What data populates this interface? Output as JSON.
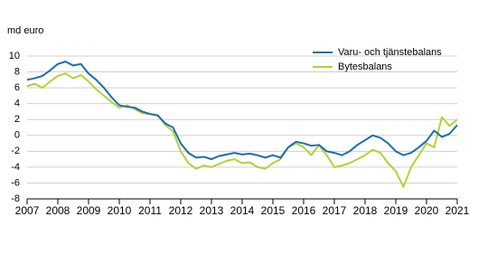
{
  "chart_data": {
    "type": "line",
    "y_label": "md euro",
    "x": [
      2007,
      2007.25,
      2007.5,
      2007.75,
      2008,
      2008.25,
      2008.5,
      2008.75,
      2009,
      2009.25,
      2009.5,
      2009.75,
      2010,
      2010.25,
      2010.5,
      2010.75,
      2011,
      2011.25,
      2011.5,
      2011.75,
      2012,
      2012.25,
      2012.5,
      2012.75,
      2013,
      2013.25,
      2013.5,
      2013.75,
      2014,
      2014.25,
      2014.5,
      2014.75,
      2015,
      2015.25,
      2015.5,
      2015.75,
      2016,
      2016.25,
      2016.5,
      2016.75,
      2017,
      2017.25,
      2017.5,
      2017.75,
      2018,
      2018.25,
      2018.5,
      2018.75,
      2019,
      2019.25,
      2019.5,
      2019.75,
      2020,
      2020.25,
      2020.5,
      2020.75,
      2021
    ],
    "series": [
      {
        "name": "Varu- och tjänstebalans",
        "color": "#1a6eae",
        "values": [
          7.0,
          7.2,
          7.5,
          8.2,
          9.0,
          9.3,
          8.8,
          9.0,
          7.8,
          7.0,
          6.0,
          4.8,
          3.8,
          3.6,
          3.5,
          3.0,
          2.7,
          2.5,
          1.5,
          1.0,
          -1.0,
          -2.2,
          -2.8,
          -2.7,
          -3.0,
          -2.6,
          -2.4,
          -2.2,
          -2.4,
          -2.3,
          -2.5,
          -2.8,
          -2.5,
          -2.8,
          -1.5,
          -0.8,
          -1.0,
          -1.3,
          -1.2,
          -2.0,
          -2.2,
          -2.5,
          -2.0,
          -1.2,
          -0.6,
          0.0,
          -0.3,
          -1.0,
          -2.0,
          -2.5,
          -2.2,
          -1.5,
          -0.7,
          0.6,
          -0.2,
          0.2,
          1.3
        ]
      },
      {
        "name": "Bytesbalans",
        "color": "#b3d235",
        "values": [
          6.2,
          6.5,
          6.0,
          6.8,
          7.5,
          7.8,
          7.2,
          7.6,
          6.8,
          5.8,
          5.0,
          4.2,
          3.5,
          3.8,
          3.3,
          2.8,
          2.7,
          2.6,
          1.3,
          0.5,
          -2.0,
          -3.5,
          -4.2,
          -3.8,
          -4.0,
          -3.6,
          -3.2,
          -3.0,
          -3.5,
          -3.4,
          -4.0,
          -4.2,
          -3.5,
          -3.0,
          -1.5,
          -1.0,
          -1.5,
          -2.5,
          -1.2,
          -2.5,
          -4.0,
          -3.8,
          -3.5,
          -3.0,
          -2.5,
          -1.8,
          -2.2,
          -3.5,
          -4.5,
          -6.5,
          -4.0,
          -2.5,
          -1.0,
          -1.5,
          2.3,
          1.2,
          2.0
        ]
      }
    ],
    "xlim": [
      2007,
      2021
    ],
    "xticks": [
      2007,
      2008,
      2009,
      2010,
      2011,
      2012,
      2013,
      2014,
      2015,
      2016,
      2017,
      2018,
      2019,
      2020,
      2021
    ],
    "ylim": [
      -8,
      10
    ],
    "yticks": [
      -8,
      -6,
      -4,
      -2,
      0,
      2,
      4,
      6,
      8,
      10
    ],
    "grid": true,
    "legend": "top-right"
  }
}
